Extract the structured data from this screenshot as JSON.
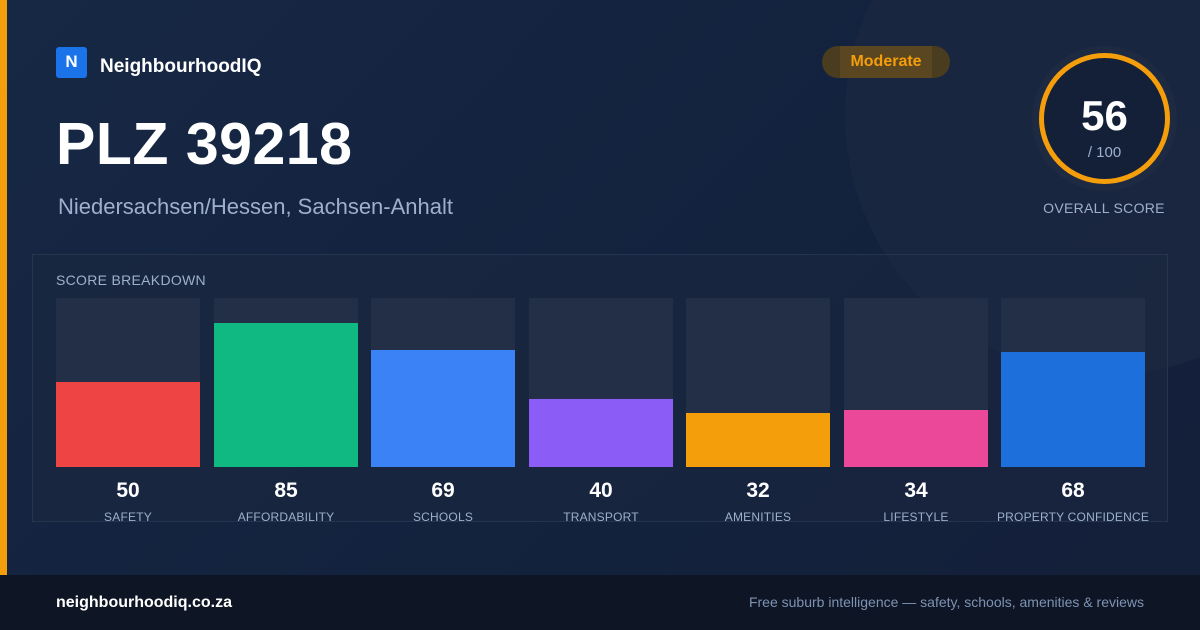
{
  "brand": {
    "logo_letter": "N",
    "name": "NeighbourhoodIQ"
  },
  "header": {
    "title": "PLZ 39218",
    "subtitle": "Niedersachsen/Hessen, Sachsen-Anhalt"
  },
  "badge": {
    "label": "Moderate",
    "color": "#f59e0b"
  },
  "overall": {
    "score": "56",
    "out_of": "/ 100",
    "label": "OVERALL SCORE",
    "ring_color": "#f59e0b"
  },
  "breakdown": {
    "title": "SCORE BREAKDOWN",
    "max": 100,
    "items": [
      {
        "label": "SAFETY",
        "value": 50,
        "color": "#ef4444"
      },
      {
        "label": "AFFORDABILITY",
        "value": 85,
        "color": "#10b981"
      },
      {
        "label": "SCHOOLS",
        "value": 69,
        "color": "#3b82f6"
      },
      {
        "label": "TRANSPORT",
        "value": 40,
        "color": "#8b5cf6"
      },
      {
        "label": "AMENITIES",
        "value": 32,
        "color": "#f59e0b"
      },
      {
        "label": "LIFESTYLE",
        "value": 34,
        "color": "#ec4899"
      },
      {
        "label": "PROPERTY CONFIDENCE",
        "value": 68,
        "color": "#1d6fdc"
      }
    ]
  },
  "footer": {
    "url": "neighbourhoodiq.co.za",
    "tagline": "Free suburb intelligence — safety, schools, amenities & reviews"
  }
}
